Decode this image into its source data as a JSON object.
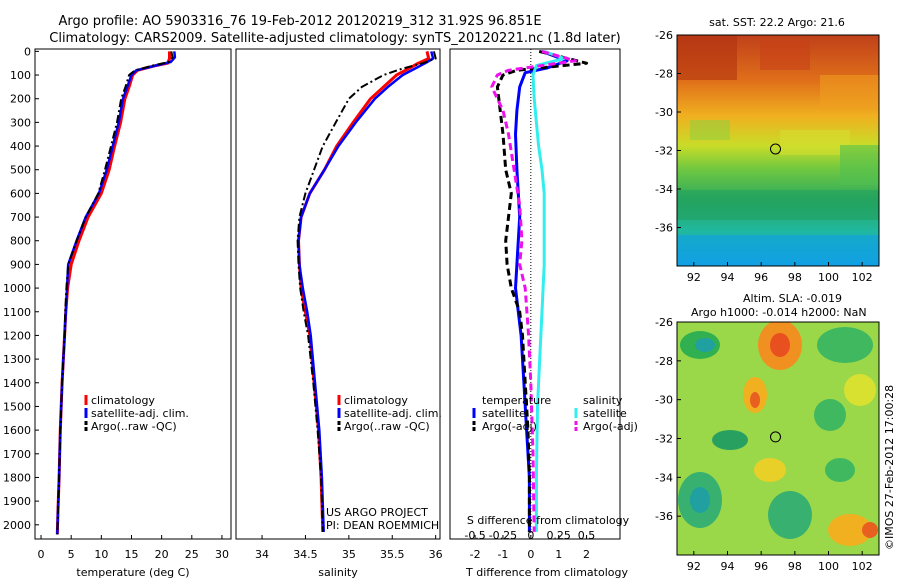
{
  "title": {
    "line1": "Argo profile: AO 5903316_76 19-Feb-2012 20120219_312 31.92S 96.851E",
    "line2": "Climatology: CARS2009. Satellite-adjusted climatology: synTS_20120221.nc (1.8d later)"
  },
  "colors": {
    "climatology": "#ff0000",
    "satellite": "#0000ff",
    "argo": "#000000",
    "salinity_satellite": "#33eeee",
    "salinity_argo": "#ee11ee"
  },
  "chart_data": [
    {
      "type": "line",
      "panel": "temperature",
      "xlabel": "temperature (deg C)",
      "xlim": [
        -1,
        31.5
      ],
      "xticks": [
        0,
        5,
        10,
        15,
        20,
        25,
        30
      ],
      "ylim": [
        2060,
        -10
      ],
      "yticks": [
        0,
        100,
        200,
        300,
        400,
        500,
        600,
        700,
        800,
        900,
        1000,
        1100,
        1200,
        1300,
        1400,
        1500,
        1600,
        1700,
        1800,
        1900,
        2000
      ],
      "legend": [
        "climatology",
        "satellite-adj. clim.",
        "Argo(..raw -QC)"
      ],
      "series": [
        {
          "name": "climatology",
          "style": "solid",
          "x": [
            21.3,
            21.3,
            21.0,
            19.0,
            16.0,
            15.2,
            14.6,
            13.9,
            13.2,
            12.2,
            11.3,
            10.0,
            7.8,
            6.3,
            5.0,
            4.4,
            4.1,
            3.9,
            3.5,
            3.2,
            3.0,
            2.8,
            2.7
          ],
          "y": [
            0,
            30,
            50,
            60,
            80,
            100,
            150,
            200,
            300,
            400,
            500,
            600,
            700,
            800,
            900,
            1000,
            1100,
            1200,
            1400,
            1600,
            1800,
            1950,
            2040
          ]
        },
        {
          "name": "satellite-adj. clim.",
          "style": "solid",
          "x": [
            22.1,
            22.2,
            21.5,
            19.0,
            15.8,
            15.0,
            14.3,
            13.6,
            12.9,
            11.9,
            10.9,
            9.6,
            7.4,
            5.9,
            4.5,
            4.3,
            4.1,
            3.9,
            3.5,
            3.2,
            3.0,
            2.8,
            2.7
          ],
          "y": [
            0,
            25,
            45,
            60,
            80,
            100,
            150,
            200,
            300,
            400,
            500,
            600,
            700,
            800,
            900,
            1000,
            1100,
            1200,
            1400,
            1600,
            1800,
            1950,
            2040
          ]
        },
        {
          "name": "Argo(..raw -QC)",
          "style": "dashdot",
          "x": [
            21.6,
            21.8,
            21.2,
            18.5,
            15.6,
            14.6,
            14.0,
            13.3,
            12.6,
            11.6,
            10.6,
            9.5,
            7.4,
            5.9,
            4.5,
            4.2,
            4.0,
            3.9,
            3.5,
            3.2,
            3.0,
            2.8,
            2.7
          ],
          "y": [
            0,
            25,
            45,
            60,
            80,
            100,
            150,
            200,
            300,
            400,
            500,
            600,
            700,
            800,
            900,
            1000,
            1100,
            1200,
            1400,
            1600,
            1800,
            1950,
            2040
          ]
        }
      ]
    },
    {
      "type": "line",
      "panel": "salinity",
      "xlabel": "salinity",
      "xlim": [
        33.7,
        36.05
      ],
      "xticks": [
        34,
        34.5,
        35,
        35.5,
        36
      ],
      "xticklabels": [
        "34",
        "34.5",
        "35",
        "35.5",
        "36"
      ],
      "ylim": [
        2060,
        -10
      ],
      "legend": [
        "climatology",
        "satellite-adj. clim.",
        "Argo(..raw -QC)"
      ],
      "annotation": [
        "US ARGO PROJECT",
        "PI: DEAN ROEMMICH"
      ],
      "series": [
        {
          "name": "climatology",
          "style": "solid",
          "x": [
            35.9,
            35.92,
            35.8,
            35.68,
            35.55,
            35.4,
            35.25,
            35.05,
            34.86,
            34.72,
            34.55,
            34.45,
            34.42,
            34.43,
            34.45,
            34.5,
            34.55,
            34.6,
            34.65,
            34.68,
            34.7
          ],
          "y": [
            0,
            30,
            50,
            75,
            100,
            150,
            200,
            300,
            400,
            500,
            600,
            700,
            800,
            900,
            1000,
            1100,
            1200,
            1400,
            1600,
            1800,
            2030
          ]
        },
        {
          "name": "satellite-adj. clim.",
          "style": "solid",
          "x": [
            35.95,
            35.97,
            35.88,
            35.75,
            35.62,
            35.45,
            35.3,
            35.08,
            34.88,
            34.72,
            34.55,
            34.45,
            34.42,
            34.43,
            34.47,
            34.52,
            34.56,
            34.61,
            34.66,
            34.69,
            34.71
          ],
          "y": [
            0,
            30,
            50,
            75,
            100,
            150,
            200,
            300,
            400,
            500,
            600,
            700,
            800,
            900,
            1000,
            1100,
            1200,
            1400,
            1600,
            1800,
            2030
          ]
        },
        {
          "name": "Argo(..raw -QC)",
          "style": "dashdot",
          "x": [
            35.98,
            36.0,
            35.85,
            35.6,
            35.4,
            35.15,
            35.0,
            34.85,
            34.7,
            34.6,
            34.5,
            34.43,
            34.41,
            34.42,
            34.44,
            34.48,
            34.53,
            34.59,
            34.64,
            34.68,
            34.7
          ],
          "y": [
            0,
            30,
            50,
            75,
            100,
            150,
            200,
            300,
            400,
            500,
            600,
            700,
            800,
            900,
            1000,
            1100,
            1200,
            1400,
            1600,
            1800,
            2030
          ]
        }
      ]
    },
    {
      "type": "line",
      "panel": "difference",
      "xlabel": "T difference from climatology",
      "xlabel_top": "S difference from climatology",
      "xlim": [
        -2.9,
        3.2
      ],
      "xticks": [
        -2,
        -1,
        0,
        1,
        2
      ],
      "sticks": [
        -0.5,
        -0.25,
        0,
        0.25,
        0.5
      ],
      "sticklabels": [
        "-0.5",
        "-0.25",
        "0",
        "0.25",
        "0.5"
      ],
      "ylim": [
        2060,
        -10
      ],
      "legend_temperature": {
        "title": "temperature",
        "entries": [
          "satellite",
          "Argo(-adj)"
        ]
      },
      "legend_salinity": {
        "title": "salinity",
        "entries": [
          "satellite",
          "Argo(-adj)"
        ]
      },
      "series": [
        {
          "name": "temperature satellite",
          "style": "solid",
          "x": [
            0.4,
            1.3,
            0.6,
            -0.2,
            -0.4,
            -0.5,
            -0.55,
            -0.5,
            -0.45,
            -0.4,
            -0.45,
            -0.5,
            -0.55,
            -0.45,
            -0.35,
            -0.3,
            -0.25,
            -0.15,
            -0.05,
            -0.05
          ],
          "y": [
            0,
            40,
            70,
            90,
            150,
            250,
            350,
            500,
            600,
            700,
            800,
            900,
            1000,
            1100,
            1200,
            1300,
            1400,
            1600,
            1800,
            2030
          ]
        },
        {
          "name": "temperature Argo(-adj)",
          "style": "dashed",
          "x": [
            0.3,
            2.0,
            -0.5,
            -1.0,
            -1.2,
            -1.1,
            -1.0,
            -0.9,
            -0.7,
            -0.8,
            -0.9,
            -0.85,
            -0.7,
            -0.4,
            -0.3,
            -0.2,
            -0.1,
            -0.05,
            -0.05
          ],
          "y": [
            0,
            50,
            80,
            100,
            150,
            250,
            350,
            500,
            600,
            700,
            800,
            900,
            1000,
            1100,
            1200,
            1400,
            1600,
            1800,
            2030
          ]
        },
        {
          "name": "salinity satellite",
          "style": "solid",
          "x": [
            0.12,
            0.3,
            0.05,
            0.02,
            0.03,
            0.05,
            0.07,
            0.1,
            0.12,
            0.12,
            0.12,
            0.12,
            0.1,
            0.08,
            0.06,
            0.05,
            0.05
          ],
          "y": [
            0,
            30,
            60,
            100,
            200,
            300,
            400,
            500,
            600,
            700,
            800,
            900,
            1100,
            1300,
            1500,
            1800,
            2030
          ]
        },
        {
          "name": "salinity Argo(-adj)",
          "style": "dashed",
          "x": [
            0.1,
            0.4,
            -0.2,
            -0.3,
            -0.35,
            -0.25,
            -0.2,
            -0.15,
            -0.1,
            -0.08,
            -0.1,
            -0.05,
            -0.02,
            0.0,
            0.02,
            0.03
          ],
          "y": [
            0,
            40,
            80,
            100,
            150,
            250,
            350,
            500,
            650,
            800,
            900,
            1000,
            1200,
            1400,
            1700,
            2030
          ]
        }
      ]
    },
    {
      "type": "heatmap",
      "panel": "sst-map",
      "title": "sat. SST: 22.2  Argo: 21.6",
      "xlim": [
        91,
        103
      ],
      "xticks": [
        92,
        94,
        96,
        98,
        100,
        102
      ],
      "ylim": [
        -38,
        -26
      ],
      "yticks": [
        -26,
        -28,
        -30,
        -32,
        -34,
        -36
      ],
      "marker": {
        "lon": 96.85,
        "lat": -31.92
      }
    },
    {
      "type": "heatmap",
      "panel": "sla-map",
      "title_line1": "Altim. SLA: -0.019",
      "title_line2": "Argo h1000: -0.014  h2000: NaN",
      "xlim": [
        91,
        103
      ],
      "xticks": [
        92,
        94,
        96,
        98,
        100,
        102
      ],
      "ylim": [
        -38,
        -26
      ],
      "yticks": [
        -26,
        -28,
        -30,
        -32,
        -34,
        -36
      ],
      "marker": {
        "lon": 96.85,
        "lat": -31.92
      }
    }
  ],
  "credit": "©IMOS 27-Feb-2012 17:00:28"
}
